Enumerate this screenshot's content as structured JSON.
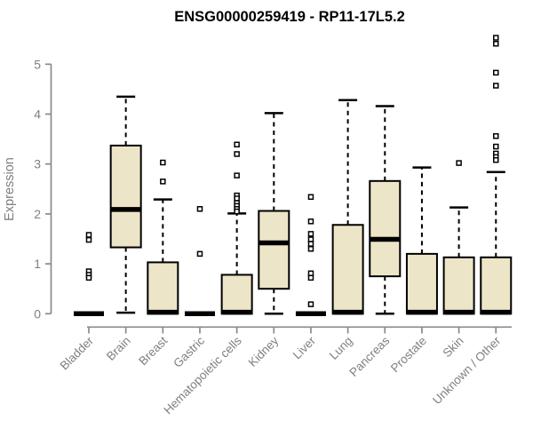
{
  "chart_data": {
    "type": "boxplot",
    "title": "ENSG00000259419 - RP11-17L5.2",
    "ylabel": "Expression",
    "ylim": [
      0,
      5.6
    ],
    "yticks": [
      0,
      1,
      2,
      3,
      4,
      5
    ],
    "grid": false,
    "colors": {
      "box_fill": "#EDE5C8",
      "box_stroke": "#000000",
      "axis_line": "#8a8a8a",
      "axis_text": "#7f7f7f",
      "title": "#000000"
    },
    "groups": [
      {
        "label": "Bladder",
        "q1": 0,
        "median": 0,
        "q3": 0,
        "whisker_low": 0,
        "whisker_high": 0,
        "outliers": [
          1.58,
          1.48,
          0.85,
          0.78,
          0.72
        ]
      },
      {
        "label": "Brain",
        "q1": 1.33,
        "median": 2.09,
        "q3": 3.37,
        "whisker_low": 0.02,
        "whisker_high": 4.35,
        "outliers": []
      },
      {
        "label": "Breast",
        "q1": 0,
        "median": 0.03,
        "q3": 1.03,
        "whisker_low": 0,
        "whisker_high": 2.29,
        "outliers": [
          3.03,
          2.65
        ]
      },
      {
        "label": "Gastric",
        "q1": 0,
        "median": 0,
        "q3": 0,
        "whisker_low": 0,
        "whisker_high": 0,
        "outliers": [
          2.1,
          1.2
        ]
      },
      {
        "label": "Hematopoietic cells",
        "q1": 0,
        "median": 0.03,
        "q3": 0.78,
        "whisker_low": 0,
        "whisker_high": 2.01,
        "outliers": [
          3.39,
          3.2,
          2.77,
          2.37,
          2.31,
          2.22,
          2.16,
          2.1,
          2.05
        ]
      },
      {
        "label": "Kidney",
        "q1": 0.5,
        "median": 1.42,
        "q3": 2.06,
        "whisker_low": 0,
        "whisker_high": 4.02,
        "outliers": []
      },
      {
        "label": "Liver",
        "q1": 0,
        "median": 0,
        "q3": 0,
        "whisker_low": 0,
        "whisker_high": 0,
        "outliers": [
          2.34,
          1.85,
          1.6,
          1.49,
          1.4,
          1.3,
          0.81,
          0.72,
          0.19
        ]
      },
      {
        "label": "Lung",
        "q1": 0,
        "median": 0.03,
        "q3": 1.78,
        "whisker_low": 0,
        "whisker_high": 4.28,
        "outliers": []
      },
      {
        "label": "Pancreas",
        "q1": 0.75,
        "median": 1.49,
        "q3": 2.66,
        "whisker_low": 0,
        "whisker_high": 4.16,
        "outliers": []
      },
      {
        "label": "Prostate",
        "q1": 0,
        "median": 0.03,
        "q3": 1.2,
        "whisker_low": 0,
        "whisker_high": 2.93,
        "outliers": []
      },
      {
        "label": "Skin",
        "q1": 0,
        "median": 0.03,
        "q3": 1.13,
        "whisker_low": 0,
        "whisker_high": 2.13,
        "outliers": [
          3.02
        ]
      },
      {
        "label": "Unknown / Other",
        "q1": 0,
        "median": 0.03,
        "q3": 1.13,
        "whisker_low": 0,
        "whisker_high": 2.84,
        "outliers": [
          5.53,
          5.41,
          4.83,
          4.57,
          3.56,
          3.35,
          3.21,
          3.14,
          3.08
        ]
      }
    ]
  }
}
